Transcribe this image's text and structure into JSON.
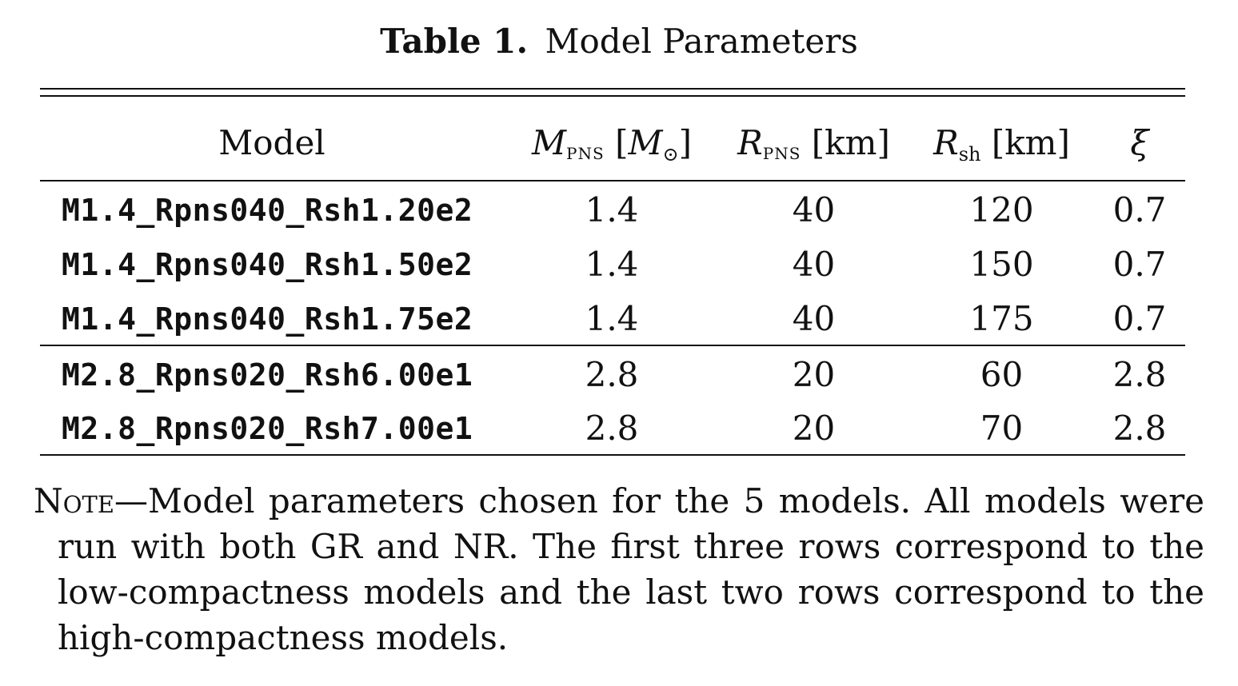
{
  "caption": {
    "label": "Table 1.",
    "title": "Model Parameters"
  },
  "header": {
    "model": "Model",
    "mpns_sym": "M",
    "mpns_sub": "PNS",
    "mpns_unit_open": "[",
    "mpns_unit_sym": "M",
    "mpns_unit_sub": "⊙",
    "mpns_unit_close": "]",
    "rpns_sym": "R",
    "rpns_sub": "PNS",
    "rpns_unit": "[km]",
    "rsh_sym": "R",
    "rsh_sub": "sh",
    "rsh_unit": "[km]",
    "xi": "ξ"
  },
  "rows": [
    {
      "model": "M1.4_Rpns040_Rsh1.20e2",
      "mpns": "1.4",
      "rpns": "40",
      "rsh": "120",
      "xi": "0.7"
    },
    {
      "model": "M1.4_Rpns040_Rsh1.50e2",
      "mpns": "1.4",
      "rpns": "40",
      "rsh": "150",
      "xi": "0.7"
    },
    {
      "model": "M1.4_Rpns040_Rsh1.75e2",
      "mpns": "1.4",
      "rpns": "40",
      "rsh": "175",
      "xi": "0.7"
    },
    {
      "model": "M2.8_Rpns020_Rsh6.00e1",
      "mpns": "2.8",
      "rpns": "20",
      "rsh": "60",
      "xi": "2.8"
    },
    {
      "model": "M2.8_Rpns020_Rsh7.00e1",
      "mpns": "2.8",
      "rpns": "20",
      "rsh": "70",
      "xi": "2.8"
    }
  ],
  "note": {
    "keyword": "Note",
    "text": "—Model parameters chosen for the 5 models. All models were run with both GR and NR. The first three rows correspond to the low-compactness models and the last two rows correspond to the high-compactness models."
  }
}
